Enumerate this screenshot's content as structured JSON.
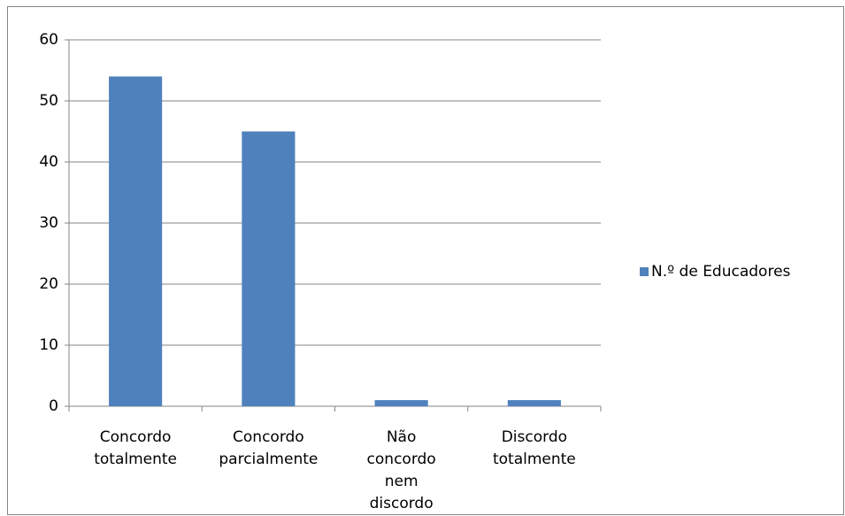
{
  "chart_data": {
    "type": "bar",
    "categories": [
      "Concordo totalmente",
      "Concordo parcialmente",
      "Não concordo nem discordo",
      "Discordo totalmente"
    ],
    "series": [
      {
        "name": "N.º de Educadores",
        "color": "#4f81bd",
        "values": [
          54,
          45,
          1,
          1
        ]
      }
    ],
    "ylim": [
      0,
      60
    ],
    "yticks": [
      0,
      10,
      20,
      30,
      40,
      50,
      60
    ],
    "grid": true,
    "legend": "right"
  }
}
